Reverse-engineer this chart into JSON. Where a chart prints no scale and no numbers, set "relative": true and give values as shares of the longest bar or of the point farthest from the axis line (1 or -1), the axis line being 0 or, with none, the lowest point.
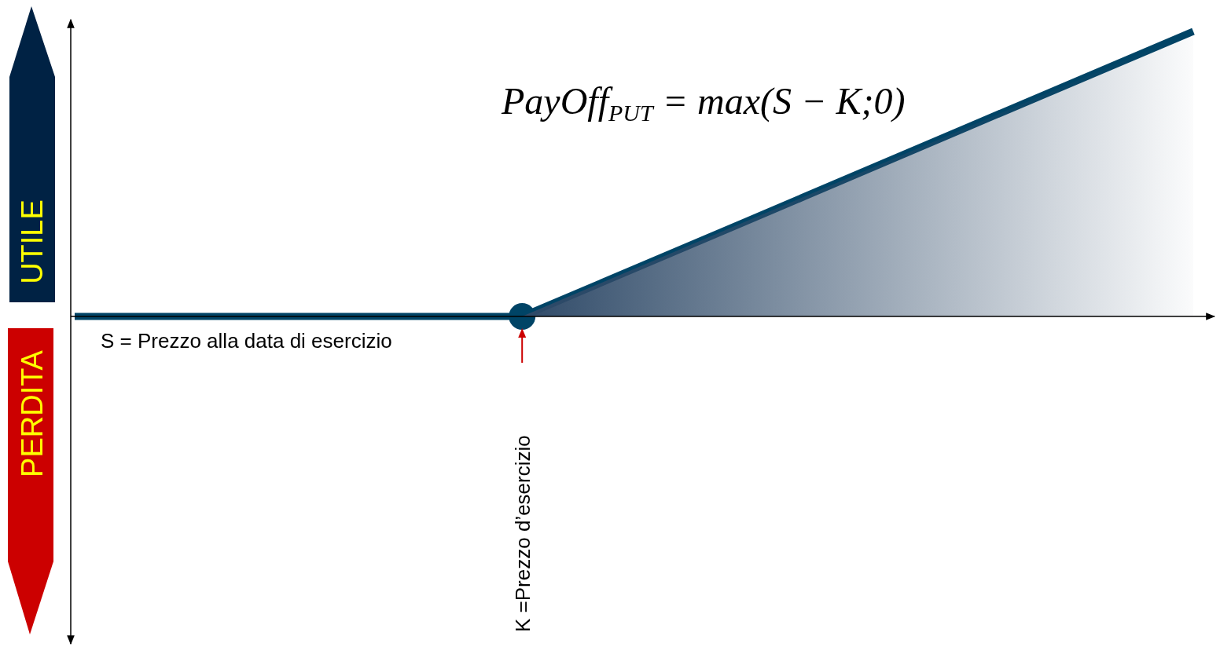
{
  "chart_data": {
    "type": "line",
    "relative": true,
    "xlabel": "S = Prezzo alla data di esercizio",
    "categories": [
      null,
      null,
      null,
      null,
      null,
      null
    ],
    "series": [
      {
        "type": "area",
        "color": "#2f4a68",
        "values": [
          null,
          null,
          0,
          0.333,
          0.667,
          1
        ]
      },
      {
        "color": "#004466",
        "values": [
          0,
          0,
          0,
          0.333,
          0.667,
          1
        ]
      }
    ],
    "annotations": [
      "PayOff$_{PUT}$ = max(S − K;0)",
      "K =Prezzo d’esercizio",
      "UTILE",
      "PERDITA"
    ]
  }
}
